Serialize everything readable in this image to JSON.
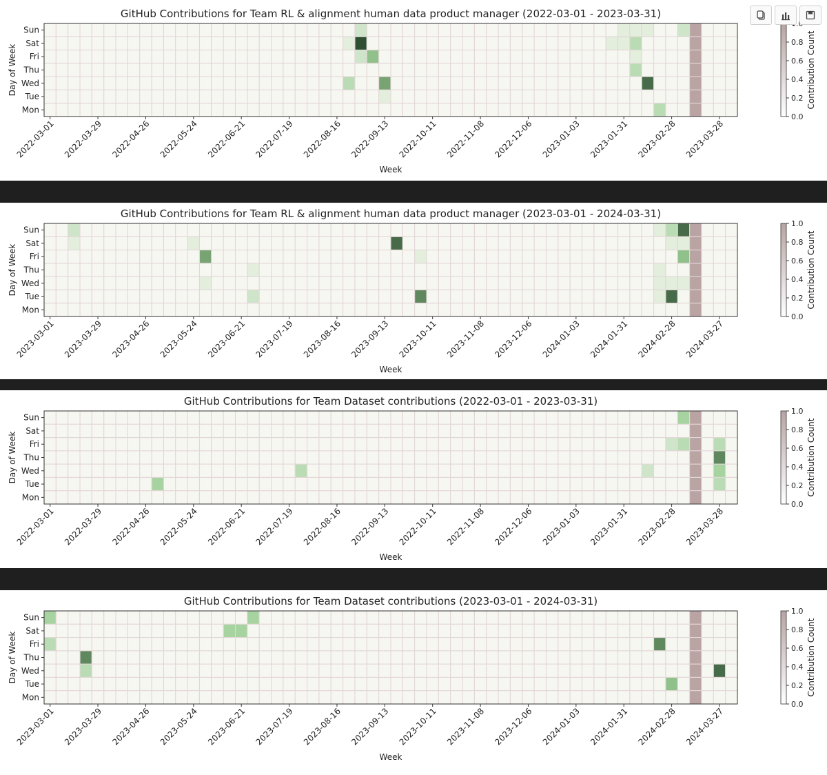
{
  "days": [
    "Sun",
    "Sat",
    "Fri",
    "Thu",
    "Wed",
    "Tue",
    "Mon"
  ],
  "toolbar": {
    "icons": [
      "copy-icon",
      "chart-icon",
      "save-icon"
    ]
  },
  "colors": {
    "frame": "#1f1f1f",
    "cell_border": "#e2d7d7",
    "gradient_low": "#f7f7f2",
    "gradient_mid": "#9ccf95",
    "gradient_high": "#2f4f33",
    "highlight_column": "#b9a3a3"
  },
  "chart_data": [
    {
      "type": "heatmap",
      "title": "GitHub Contributions for Team RL & alignment human data product manager (2022-03-01 - 2023-03-31)",
      "xlabel": "Week",
      "ylabel": "Day of Week",
      "colorbar_label": "Contribution Count",
      "colorbar_ticks": [
        "0.0",
        "0.2",
        "0.4",
        "0.6",
        "0.8",
        "1.0"
      ],
      "x_ticks": [
        "2022-03-01",
        "2022-03-29",
        "2022-04-26",
        "2022-05-24",
        "2022-06-21",
        "2022-07-19",
        "2022-08-16",
        "2022-09-13",
        "2022-10-11",
        "2022-11-08",
        "2022-12-06",
        "2023-01-03",
        "2023-01-31",
        "2023-02-28",
        "2023-03-28"
      ],
      "rows": [
        "Sun",
        "Sat",
        "Fri",
        "Thu",
        "Wed",
        "Tue",
        "Mon"
      ],
      "columns": 58,
      "highlight_week": 54,
      "values": [
        "0000000000000000000000000020000000000000000000001110020000",
        "0000000000000000000000000190000000000000000000011300000000",
        "0000000000000000000000000025000000000000000000000100000000",
        "0000000000000000000000000000000000000000000000000300000000",
        "0000000000000000000000000300600000000000000000000080000000",
        "0000000000000000000000000000100000000000000000000000000000",
        "0000000000000000000000000000000000000000000000000003000000"
      ]
    },
    {
      "type": "heatmap",
      "title": "GitHub Contributions for Team RL & alignment human data product manager (2023-03-01 - 2024-03-31)",
      "xlabel": "Week",
      "ylabel": "Day of Week",
      "colorbar_label": "Contribution Count",
      "colorbar_ticks": [
        "0.0",
        "0.2",
        "0.4",
        "0.6",
        "0.8",
        "1.0"
      ],
      "x_ticks": [
        "2023-03-01",
        "2023-03-29",
        "2023-04-26",
        "2023-05-24",
        "2023-06-21",
        "2023-07-19",
        "2023-08-16",
        "2023-09-13",
        "2023-10-11",
        "2023-11-08",
        "2023-12-06",
        "2024-01-03",
        "2024-01-31",
        "2024-02-28",
        "2024-03-27"
      ],
      "rows": [
        "Sun",
        "Sat",
        "Fri",
        "Thu",
        "Wed",
        "Tue",
        "Mon"
      ],
      "columns": 58,
      "highlight_week": 54,
      "values": [
        "0020000000000000000000000000000000000000000000000001381000",
        "0010000000001000000000000000080000000000000000000000110000",
        "0000000000000600000000000000000100000000000000000000050000",
        "0000000000000000010000000000000000000000000000000001000000",
        "0000000000000100000000000000000000000000000000000001111000",
        "0000000000000000020000000000000700000000000000000001800000",
        "0000000000000000000000000000000000000000000000000000000000"
      ]
    },
    {
      "type": "heatmap",
      "title": "GitHub Contributions for Team Dataset contributions (2022-03-01 - 2023-03-31)",
      "xlabel": "Week",
      "ylabel": "Day of Week",
      "colorbar_label": "Contribution Count",
      "colorbar_ticks": [
        "0.0",
        "0.2",
        "0.4",
        "0.6",
        "0.8",
        "1.0"
      ],
      "x_ticks": [
        "2022-03-01",
        "2022-03-29",
        "2022-04-26",
        "2022-05-24",
        "2022-06-21",
        "2022-07-19",
        "2022-08-16",
        "2022-09-13",
        "2022-10-11",
        "2022-11-08",
        "2022-12-06",
        "2023-01-03",
        "2023-01-31",
        "2023-02-28",
        "2023-03-28"
      ],
      "rows": [
        "Sun",
        "Sat",
        "Fri",
        "Thu",
        "Wed",
        "Tue",
        "Mon"
      ],
      "columns": 58,
      "highlight_week": 54,
      "values": [
        "0000000000000000000000000000000000000000000000000000040000",
        "0000000000000000000000000000000000000000000000000000000000",
        "0000000000000000000000000000000000000000000000000000230030",
        "0000000000000000000000000000000000000000000000000000000070",
        "0000000000000000000003000000000000000000000000000020000040",
        "0000000004000000000000000000000000000000000000000000000030",
        "0000000000000000000000000000000000000000000000000000000000"
      ]
    },
    {
      "type": "heatmap",
      "title": "GitHub Contributions for Team Dataset contributions (2023-03-01 - 2024-03-31)",
      "xlabel": "Week",
      "ylabel": "Day of Week",
      "colorbar_label": "Contribution Count",
      "colorbar_ticks": [
        "0.0",
        "0.2",
        "0.4",
        "0.6",
        "0.8",
        "1.0"
      ],
      "x_ticks": [
        "2023-03-01",
        "2023-03-29",
        "2023-04-26",
        "2023-05-24",
        "2023-06-21",
        "2023-07-19",
        "2023-08-16",
        "2023-09-13",
        "2023-10-11",
        "2023-11-08",
        "2023-12-06",
        "2024-01-03",
        "2024-01-31",
        "2024-02-28",
        "2024-03-27"
      ],
      "rows": [
        "Sun",
        "Sat",
        "Fri",
        "Thu",
        "Wed",
        "Tue",
        "Mon"
      ],
      "columns": 58,
      "highlight_week": 54,
      "values": [
        "4000000000000000040000000000000000000000000000000000000000",
        "0000000000000004400000000000000000000000000000000000000000",
        "3000000000000000000000000000000000000000000000000007000000",
        "0007000000000000000000000000000000000000000000000000000000",
        "0003000000000000000000000000000000000000000000000000000080",
        "0000000000000000000000000000000000000000000000000000500000",
        "0000000000000000000000000000000000000000000000000000000000"
      ]
    }
  ]
}
